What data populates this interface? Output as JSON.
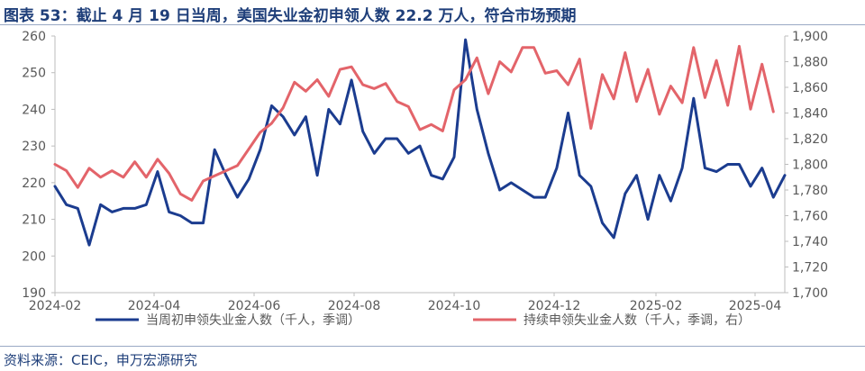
{
  "title": "图表 53：截止 4 月 19 日当周，美国失业金初申领人数 22.2 万人，符合市场预期",
  "source": "资料来源：CEIC，申万宏源研究",
  "colors": {
    "series1": "#1b3c8f",
    "series2": "#e3646a",
    "axis": "#bdbdbd",
    "text": "#595959",
    "title": "#1f3f7a"
  },
  "chart_data": {
    "type": "line",
    "x_tick_labels": [
      "2024-02",
      "2024-04",
      "2024-06",
      "2024-08",
      "2024-10",
      "2024-12",
      "2025-02",
      "2025-04"
    ],
    "ylim_left": [
      190,
      260
    ],
    "ylim_right": [
      1700,
      1900
    ],
    "y_ticks_left": [
      "190",
      "200",
      "210",
      "220",
      "230",
      "240",
      "250",
      "260"
    ],
    "y_ticks_right": [
      "1,700",
      "1,720",
      "1,740",
      "1,760",
      "1,780",
      "1,800",
      "1,820",
      "1,840",
      "1,860",
      "1,880",
      "1,900"
    ],
    "legend_position": "bottom",
    "grid": false,
    "series": [
      {
        "name": "当周初申领失业金人数（千人，季调）",
        "axis": "left",
        "values": [
          219,
          214,
          213,
          203,
          214,
          212,
          213,
          213,
          214,
          223,
          212,
          211,
          209,
          209,
          229,
          222,
          216,
          221,
          229,
          241,
          238,
          233,
          238,
          222,
          240,
          236,
          248,
          234,
          228,
          232,
          232,
          228,
          230,
          222,
          221,
          227,
          259,
          240,
          228,
          218,
          220,
          218,
          216,
          216,
          224,
          239,
          222,
          219,
          209,
          205,
          217,
          222,
          210,
          222,
          215,
          224,
          243,
          224,
          223,
          225,
          225,
          219,
          224,
          216,
          222
        ]
      },
      {
        "name": "持续申领失业金人数（千人，季调，右）",
        "axis": "right",
        "values": [
          1800,
          1795,
          1782,
          1797,
          1790,
          1795,
          1790,
          1802,
          1790,
          1804,
          1793,
          1777,
          1772,
          1787,
          1791,
          1795,
          1799,
          1812,
          1825,
          1832,
          1844,
          1864,
          1857,
          1866,
          1853,
          1874,
          1876,
          1862,
          1859,
          1863,
          1849,
          1845,
          1827,
          1831,
          1826,
          1858,
          1866,
          1883,
          1855,
          1880,
          1872,
          1891,
          1891,
          1871,
          1873,
          1862,
          1882,
          1828,
          1870,
          1851,
          1887,
          1849,
          1874,
          1839,
          1861,
          1848,
          1891,
          1852,
          1881,
          1846,
          1892,
          1843,
          1878,
          1841
        ]
      }
    ]
  }
}
